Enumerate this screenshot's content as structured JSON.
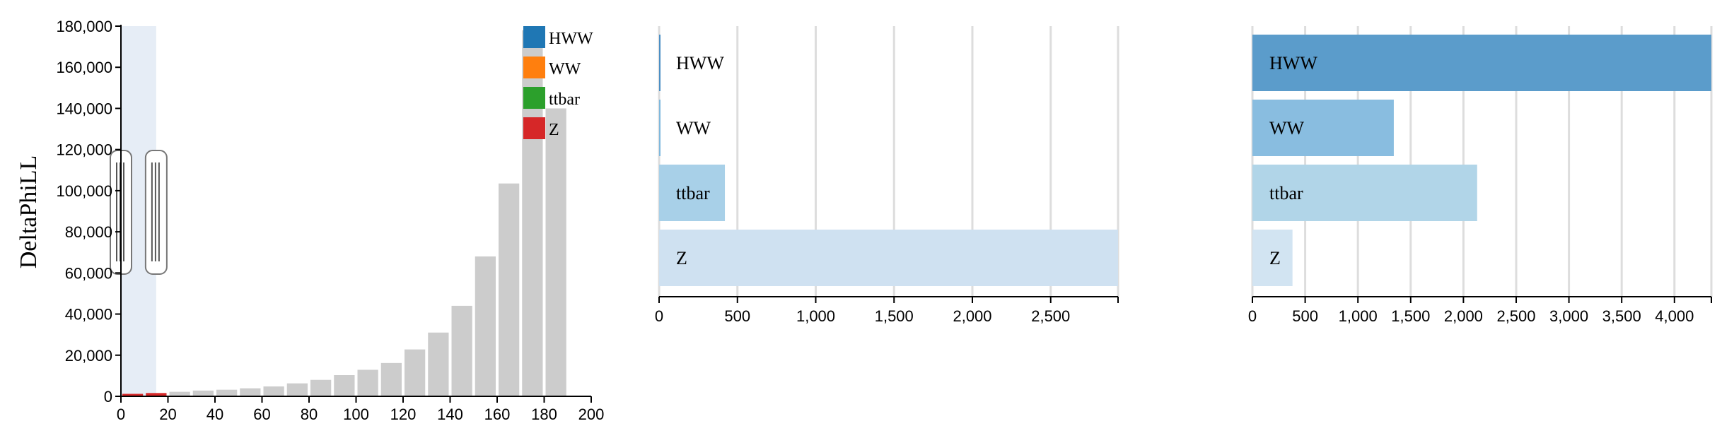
{
  "chart_data": [
    {
      "type": "bar",
      "ylabel": "DeltaPhiLL",
      "xlim": [
        0,
        200
      ],
      "ylim": [
        0,
        180000
      ],
      "x_ticks": [
        0,
        20,
        40,
        60,
        80,
        100,
        120,
        140,
        160,
        180,
        200
      ],
      "y_ticks": [
        0,
        20000,
        40000,
        60000,
        80000,
        100000,
        120000,
        140000,
        160000,
        180000
      ],
      "x_tick_labels": [
        "0",
        "20",
        "40",
        "60",
        "80",
        "100",
        "120",
        "140",
        "160",
        "180",
        "200"
      ],
      "y_tick_labels": [
        "0",
        "20,000",
        "40,000",
        "60,000",
        "80,000",
        "100,000",
        "120,000",
        "140,000",
        "160,000",
        "180,000"
      ],
      "bin_width": 10,
      "bins": [
        {
          "x0": 0,
          "value": 1200,
          "highlight": true
        },
        {
          "x0": 10,
          "value": 1600,
          "highlight": true
        },
        {
          "x0": 20,
          "value": 2200,
          "highlight": false
        },
        {
          "x0": 30,
          "value": 2800,
          "highlight": false
        },
        {
          "x0": 40,
          "value": 3200,
          "highlight": false
        },
        {
          "x0": 50,
          "value": 3900,
          "highlight": false
        },
        {
          "x0": 60,
          "value": 4800,
          "highlight": false
        },
        {
          "x0": 70,
          "value": 6300,
          "highlight": false
        },
        {
          "x0": 80,
          "value": 8000,
          "highlight": false
        },
        {
          "x0": 90,
          "value": 10300,
          "highlight": false
        },
        {
          "x0": 100,
          "value": 12900,
          "highlight": false
        },
        {
          "x0": 110,
          "value": 16200,
          "highlight": false
        },
        {
          "x0": 120,
          "value": 22800,
          "highlight": false
        },
        {
          "x0": 130,
          "value": 31000,
          "highlight": false
        },
        {
          "x0": 140,
          "value": 44000,
          "highlight": false
        },
        {
          "x0": 150,
          "value": 68000,
          "highlight": false
        },
        {
          "x0": 160,
          "value": 103500,
          "highlight": false
        },
        {
          "x0": 170,
          "value": 178000,
          "highlight": false
        },
        {
          "x0": 180,
          "value": 140000,
          "highlight": false
        }
      ],
      "brush_range": [
        0,
        15
      ],
      "legend": [
        {
          "name": "HWW",
          "color": "#1f77b4"
        },
        {
          "name": "WW",
          "color": "#ff7f0e"
        },
        {
          "name": "ttbar",
          "color": "#2ca02c"
        },
        {
          "name": "Z",
          "color": "#d62728"
        }
      ],
      "legend_placement": "top-right",
      "colors": {
        "bar": "#cccccc",
        "highlight_bar": "#d62728",
        "brush": "#e6edf6"
      }
    },
    {
      "type": "bar",
      "orientation": "horizontal",
      "categories": [
        "HWW",
        "WW",
        "ttbar",
        "Z"
      ],
      "values": [
        2,
        5,
        420,
        2930
      ],
      "colors": [
        "#4c8fc4",
        "#7fb8dd",
        "#a8d0e8",
        "#cfe1f1"
      ],
      "xlim": [
        0,
        2930
      ],
      "x_ticks": [
        0,
        500,
        1000,
        1500,
        2000,
        2500
      ],
      "x_tick_labels": [
        "0",
        "500",
        "1,000",
        "1,500",
        "2,000",
        "2,500"
      ],
      "grid": true
    },
    {
      "type": "bar",
      "orientation": "horizontal",
      "categories": [
        "HWW",
        "WW",
        "ttbar",
        "Z"
      ],
      "values": [
        4350,
        1340,
        2130,
        380
      ],
      "colors": [
        "#5b9ccb",
        "#89bde0",
        "#b1d5e8",
        "#d2e4f2"
      ],
      "xlim": [
        0,
        4350
      ],
      "x_ticks": [
        0,
        500,
        1000,
        1500,
        2000,
        2500,
        3000,
        3500,
        4000
      ],
      "x_tick_labels": [
        "0",
        "500",
        "1,000",
        "1,500",
        "2,000",
        "2,500",
        "3,000",
        "3,500",
        "4,000"
      ],
      "grid": true
    }
  ]
}
